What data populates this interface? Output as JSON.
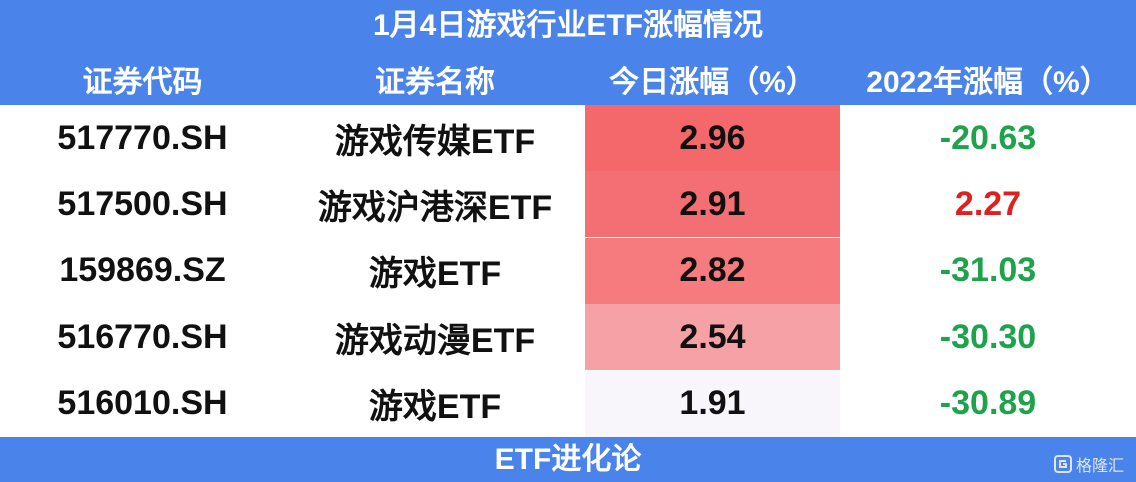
{
  "title": "1月4日游戏行业ETF涨幅情况",
  "table": {
    "header": [
      "证券代码",
      "证券名称",
      "今日涨幅（%）",
      "2022年涨幅（%）"
    ],
    "rows": [
      [
        "517770.SH",
        "游戏传媒ETF",
        "2.96",
        "-20.63"
      ],
      [
        "517500.SH",
        "游戏沪港深ETF",
        "2.91",
        "2.27"
      ],
      [
        "159869.SZ",
        "游戏ETF",
        "2.82",
        "-31.03"
      ],
      [
        "516770.SH",
        "游戏动漫ETF",
        "2.54",
        "-30.30"
      ],
      [
        "516010.SH",
        "游戏ETF",
        "1.91",
        "-30.89"
      ]
    ]
  },
  "footer": "ETF进化论",
  "watermark": "格隆汇"
}
